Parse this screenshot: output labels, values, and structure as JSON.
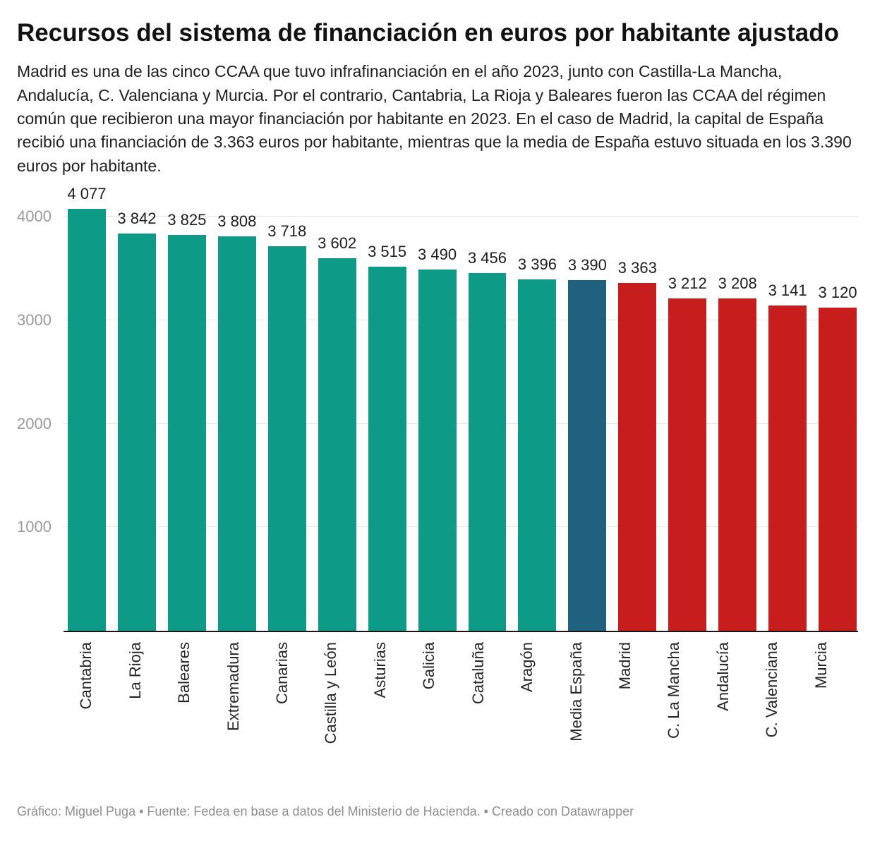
{
  "header": {
    "title": "Recursos del sistema de financiación en euros por habitante ajustado",
    "description": "Madrid es una de las cinco CCAA que tuvo infrafinanciación en el año 2023, junto con Castilla-La Mancha, Andalucía, C. Valenciana y Murcia. Por el contrario, Cantabria, La Rioja y Baleares fueron las CCAA del régimen común que recibieron una mayor financiación por habitante en 2023. En el caso de Madrid, la capital de España recibió una financiación de 3.363 euros por habitante, mientras que la media de España estuvo situada en los 3.390 euros por habitante."
  },
  "footer": {
    "text": "Gráfico: Miguel Puga • Fuente: Fedea en base a datos del Ministerio de Hacienda. • Creado con Datawrapper"
  },
  "chart_data": {
    "type": "bar",
    "title": "Recursos del sistema de financiación en euros por habitante ajustado",
    "xlabel": "",
    "ylabel": "",
    "ylim": [
      0,
      4077
    ],
    "scale_max": 4077,
    "grid": true,
    "yticks": [
      {
        "value": 1000,
        "label": "1000"
      },
      {
        "value": 2000,
        "label": "2000"
      },
      {
        "value": 3000,
        "label": "3000"
      },
      {
        "value": 4000,
        "label": "4000"
      }
    ],
    "categories": [
      "Cantabria",
      "La Rioja",
      "Baleares",
      "Extremadura",
      "Canarias",
      "Castilla y León",
      "Asturias",
      "Galicia",
      "Cataluña",
      "Aragón",
      "Media España",
      "Madrid",
      "C. La Mancha",
      "Andalucía",
      "C. Valenciana",
      "Murcia"
    ],
    "values": [
      4077,
      3842,
      3825,
      3808,
      3718,
      3602,
      3515,
      3490,
      3456,
      3396,
      3390,
      3363,
      3212,
      3208,
      3141,
      3120
    ],
    "value_labels": [
      "4 077",
      "3 842",
      "3 825",
      "3 808",
      "3 718",
      "3 602",
      "3 515",
      "3 490",
      "3 456",
      "3 396",
      "3 390",
      "3 363",
      "3 212",
      "3 208",
      "3 141",
      "3 120"
    ],
    "bar_color_roles": [
      "teal",
      "teal",
      "teal",
      "teal",
      "teal",
      "teal",
      "teal",
      "teal",
      "teal",
      "teal",
      "blue",
      "red",
      "red",
      "red",
      "red",
      "red"
    ],
    "palette": {
      "teal": "#0d9a86",
      "blue": "#20617f",
      "red": "#c71e1d"
    },
    "baseline_color": "#141414",
    "gridline_color": "#e4e4e4",
    "axis_label_color": "#9a9a9a"
  }
}
